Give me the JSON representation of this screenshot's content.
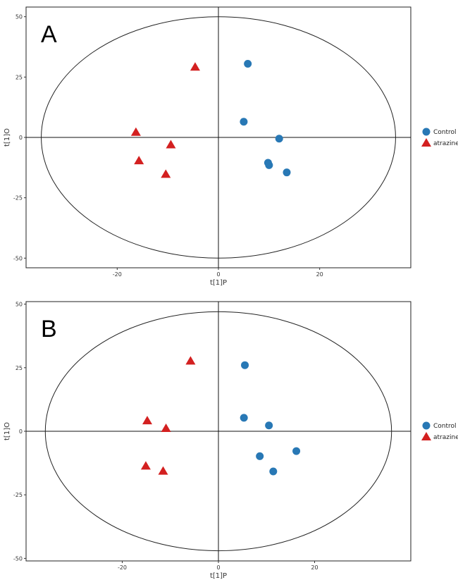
{
  "chart_data": [
    {
      "type": "scatter",
      "panel_label": "A",
      "xlabel": "t[1]P",
      "ylabel": "t[1]O",
      "xlim": [
        -38,
        38
      ],
      "ylim": [
        -54,
        54
      ],
      "xticks": [
        -20,
        0,
        20
      ],
      "yticks": [
        -50,
        -25,
        0,
        25,
        50
      ],
      "xtick_labels": [
        "-20",
        "0",
        "20"
      ],
      "ytick_labels": [
        "-50",
        "-25",
        "0",
        "25",
        "50"
      ],
      "grid": false,
      "ellipse": {
        "rx": 35,
        "ry": 50
      },
      "legend_position": "right",
      "series": [
        {
          "name": "Control",
          "marker": "circle",
          "color": "#2878b5",
          "points": [
            [
              5.8,
              30.5
            ],
            [
              5.0,
              6.5
            ],
            [
              12.0,
              -0.5
            ],
            [
              9.8,
              -10.5
            ],
            [
              10.0,
              -11.5
            ],
            [
              13.5,
              -14.5
            ]
          ]
        },
        {
          "name": "atrazine",
          "marker": "triangle",
          "color": "#d32020",
          "points": [
            [
              -4.6,
              29.0
            ],
            [
              -16.3,
              2.0
            ],
            [
              -9.4,
              -3.2
            ],
            [
              -15.7,
              -9.8
            ],
            [
              -10.4,
              -15.4
            ]
          ]
        }
      ]
    },
    {
      "type": "scatter",
      "panel_label": "B",
      "xlabel": "t[1]P",
      "ylabel": "t[1]O",
      "xlim": [
        -40,
        40
      ],
      "ylim": [
        -51,
        51
      ],
      "xticks": [
        -20,
        0,
        20
      ],
      "yticks": [
        -50,
        -25,
        0,
        25,
        50
      ],
      "xtick_labels": [
        "-20",
        "0",
        "20"
      ],
      "ytick_labels": [
        "-50",
        "-25",
        "0",
        "25",
        "50"
      ],
      "grid": false,
      "ellipse": {
        "rx": 36,
        "ry": 47
      },
      "legend_position": "right",
      "series": [
        {
          "name": "Control",
          "marker": "circle",
          "color": "#2878b5",
          "points": [
            [
              5.5,
              26.0
            ],
            [
              5.3,
              5.3
            ],
            [
              10.5,
              2.3
            ],
            [
              16.2,
              -7.8
            ],
            [
              8.6,
              -9.8
            ],
            [
              11.4,
              -15.8
            ]
          ]
        },
        {
          "name": "atrazine",
          "marker": "triangle",
          "color": "#d32020",
          "points": [
            [
              -5.8,
              27.5
            ],
            [
              -14.8,
              4.0
            ],
            [
              -10.9,
              1.0
            ],
            [
              -15.1,
              -13.8
            ],
            [
              -11.5,
              -15.8
            ]
          ]
        }
      ]
    }
  ]
}
